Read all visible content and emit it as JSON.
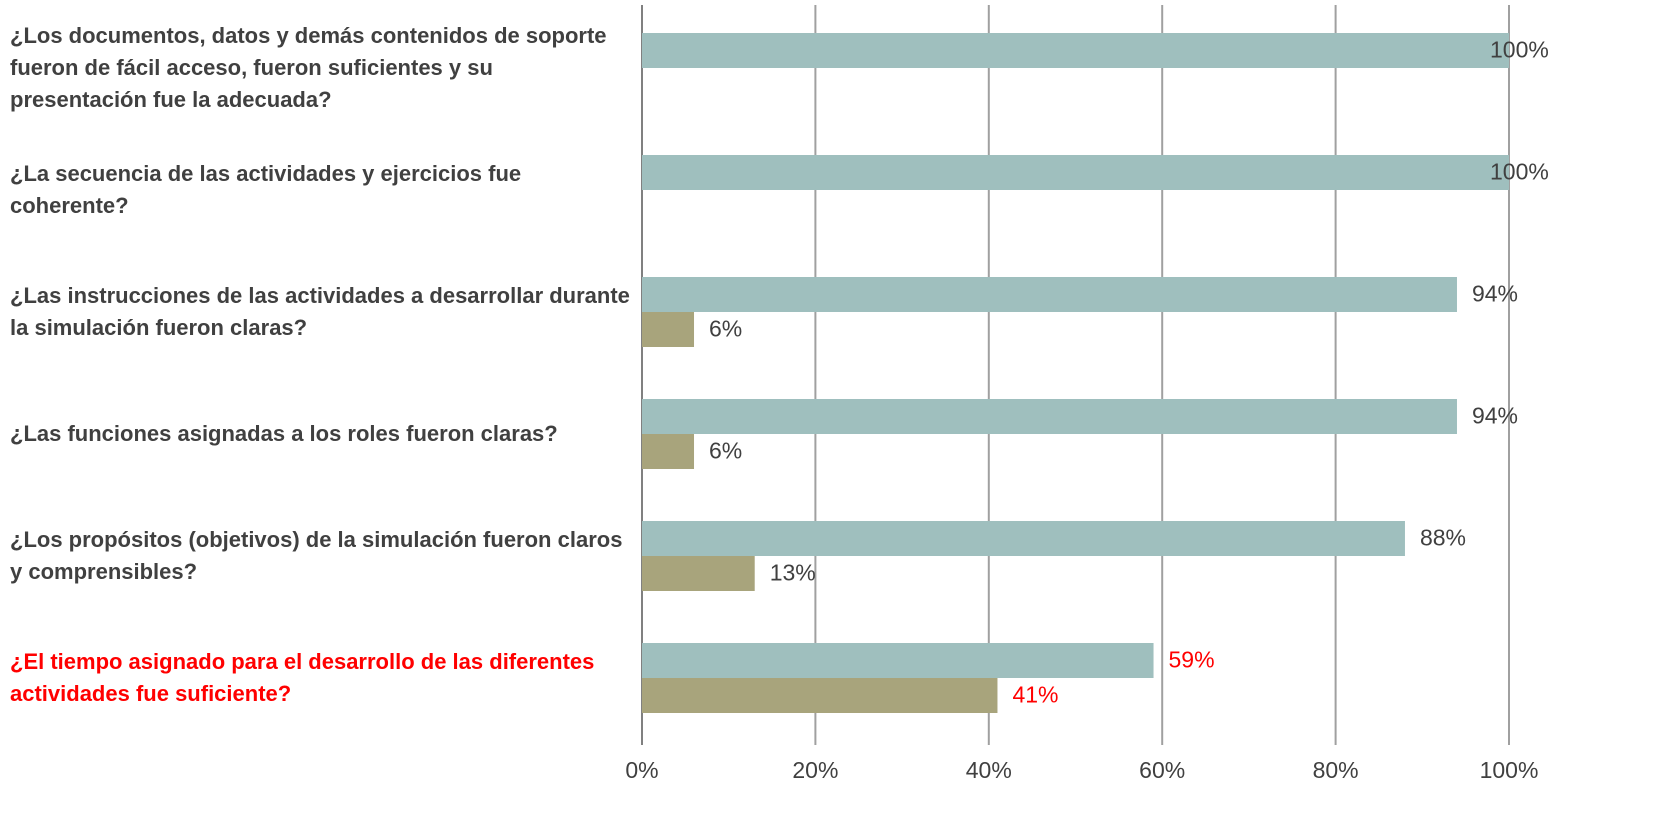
{
  "chart_data": {
    "type": "hbar",
    "categories": [
      "¿Los documentos, datos  y demás contenidos de soporte fueron de fácil acceso, fueron suficientes y su presentación fue la adecuada?",
      "¿La secuencia de las actividades y ejercicios fue coherente?",
      "¿Las instrucciones de las actividades a desarrollar durante la simulación  fueron claras?",
      "¿Las  funciones asignadas a los roles fueron claras?",
      "¿Los propósitos (objetivos) de la simulación fueron claros y comprensibles?",
      "¿El tiempo asignado para el desarrollo de las diferentes actividades fue suficiente?"
    ],
    "category_colors": [
      "#404040",
      "#404040",
      "#404040",
      "#404040",
      "#404040",
      "#ff0000"
    ],
    "series": [
      {
        "color": "#9fbfbe",
        "values": [
          100,
          100,
          94,
          94,
          88,
          59
        ],
        "value_labels": [
          "100%",
          "100%",
          "94%",
          "94%",
          "88%",
          "59%"
        ]
      },
      {
        "color": "#a8a47c",
        "values": [
          null,
          null,
          6,
          6,
          13,
          41
        ],
        "value_labels": [
          null,
          null,
          "6%",
          "6%",
          "13%",
          "41%"
        ]
      }
    ],
    "xlim": [
      0,
      100
    ],
    "xticks": [
      {
        "value": 0,
        "label": "0%"
      },
      {
        "value": 20,
        "label": "20%"
      },
      {
        "value": 40,
        "label": "40%"
      },
      {
        "value": 60,
        "label": "60%"
      },
      {
        "value": 80,
        "label": "80%"
      },
      {
        "value": 100,
        "label": "100%"
      }
    ],
    "grid": true
  }
}
